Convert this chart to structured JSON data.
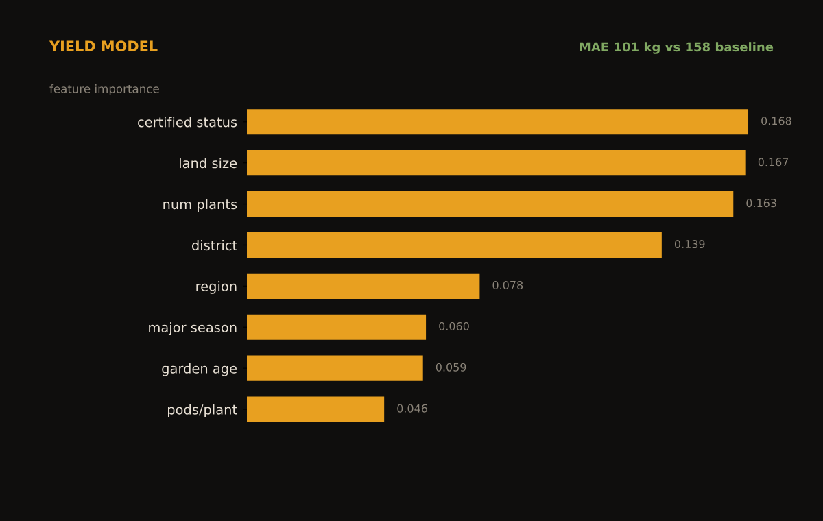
{
  "chart_data": {
    "type": "bar",
    "orientation": "horizontal",
    "title": "YIELD MODEL",
    "subtitle": "feature importance",
    "annotations": [
      "MAE 101 kg vs 158 baseline"
    ],
    "categories": [
      "certified status",
      "land size",
      "num plants",
      "district",
      "region",
      "major season",
      "garden age",
      "pods/plant"
    ],
    "values": [
      0.168,
      0.167,
      0.163,
      0.139,
      0.078,
      0.06,
      0.059,
      0.046
    ],
    "value_labels": [
      "0.168",
      "0.167",
      "0.163",
      "0.139",
      "0.078",
      "0.060",
      "0.059",
      "0.046"
    ],
    "color": "#e8a020",
    "tick_labels": "y"
  }
}
